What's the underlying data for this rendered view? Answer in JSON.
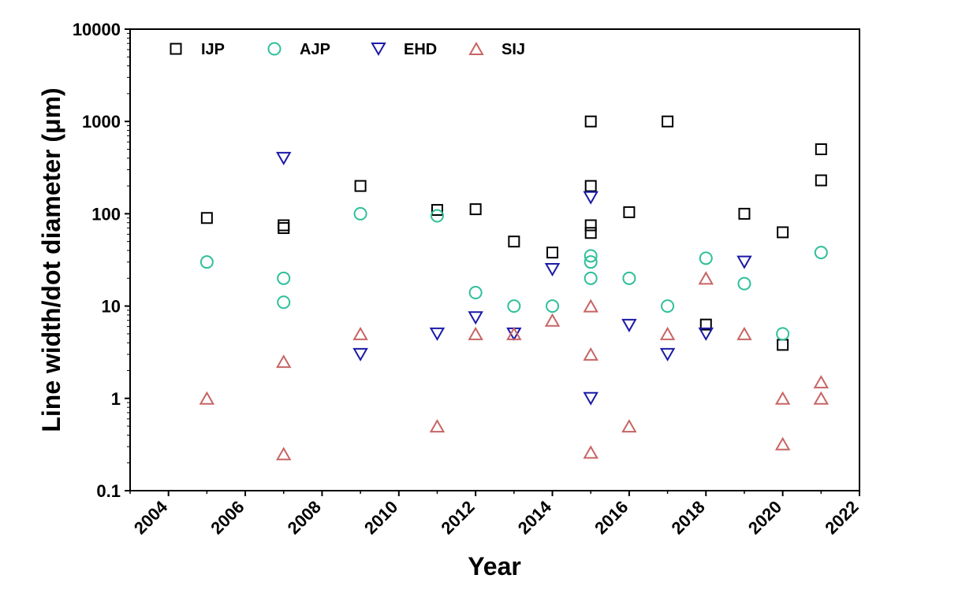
{
  "chart_data": {
    "type": "scatter",
    "xlabel": "Year",
    "ylabel": "Line width/dot diameter (μm)",
    "xlim": [
      2003,
      2022
    ],
    "ylim": [
      0.1,
      10000
    ],
    "yscale": "log",
    "x_ticks": [
      "2004",
      "2006",
      "2008",
      "2010",
      "2012",
      "2014",
      "2016",
      "2018",
      "2020",
      "2022"
    ],
    "y_ticks": [
      "0.1",
      "1",
      "10",
      "100",
      "1000",
      "10000"
    ],
    "legend_position": "top-left",
    "grid": false,
    "series": [
      {
        "name": "IJP",
        "marker": "square",
        "color": "#000000",
        "points": [
          [
            2005,
            90
          ],
          [
            2007,
            75
          ],
          [
            2007,
            70
          ],
          [
            2009,
            200
          ],
          [
            2011,
            110
          ],
          [
            2012,
            112
          ],
          [
            2013,
            50
          ],
          [
            2014,
            38
          ],
          [
            2015,
            1000
          ],
          [
            2015,
            200
          ],
          [
            2015,
            75
          ],
          [
            2015,
            62
          ],
          [
            2016,
            104
          ],
          [
            2017,
            1000
          ],
          [
            2018,
            6.3
          ],
          [
            2019,
            100
          ],
          [
            2020,
            3.8
          ],
          [
            2020,
            63
          ],
          [
            2021,
            500
          ],
          [
            2021,
            230
          ]
        ]
      },
      {
        "name": "AJP",
        "marker": "circle",
        "color": "#2fbf9a",
        "points": [
          [
            2005,
            30
          ],
          [
            2007,
            20
          ],
          [
            2007,
            11
          ],
          [
            2009,
            100
          ],
          [
            2011,
            95
          ],
          [
            2012,
            14
          ],
          [
            2013,
            10
          ],
          [
            2014,
            10
          ],
          [
            2015,
            35
          ],
          [
            2015,
            30
          ],
          [
            2015,
            20
          ],
          [
            2016,
            20
          ],
          [
            2017,
            10
          ],
          [
            2018,
            33
          ],
          [
            2019,
            17.5
          ],
          [
            2020,
            5
          ],
          [
            2021,
            38
          ]
        ]
      },
      {
        "name": "EHD",
        "marker": "triangle-down",
        "color": "#1a1aa8",
        "points": [
          [
            2007,
            400
          ],
          [
            2009,
            3
          ],
          [
            2011,
            5
          ],
          [
            2012,
            7.5
          ],
          [
            2013,
            5
          ],
          [
            2014,
            25
          ],
          [
            2015,
            150
          ],
          [
            2015,
            1
          ],
          [
            2016,
            6.2
          ],
          [
            2017,
            3
          ],
          [
            2018,
            5
          ],
          [
            2019,
            30
          ]
        ]
      },
      {
        "name": "SIJ",
        "marker": "triangle-up",
        "color": "#c86464",
        "points": [
          [
            2005,
            1
          ],
          [
            2007,
            2.5
          ],
          [
            2007,
            0.25
          ],
          [
            2009,
            5
          ],
          [
            2011,
            0.5
          ],
          [
            2012,
            5
          ],
          [
            2013,
            5
          ],
          [
            2014,
            7
          ],
          [
            2015,
            10
          ],
          [
            2015,
            3
          ],
          [
            2015,
            0.26
          ],
          [
            2016,
            0.5
          ],
          [
            2017,
            5
          ],
          [
            2018,
            20
          ],
          [
            2019,
            5
          ],
          [
            2020,
            1
          ],
          [
            2020,
            0.32
          ],
          [
            2021,
            1.5
          ],
          [
            2021,
            1
          ]
        ]
      }
    ]
  }
}
